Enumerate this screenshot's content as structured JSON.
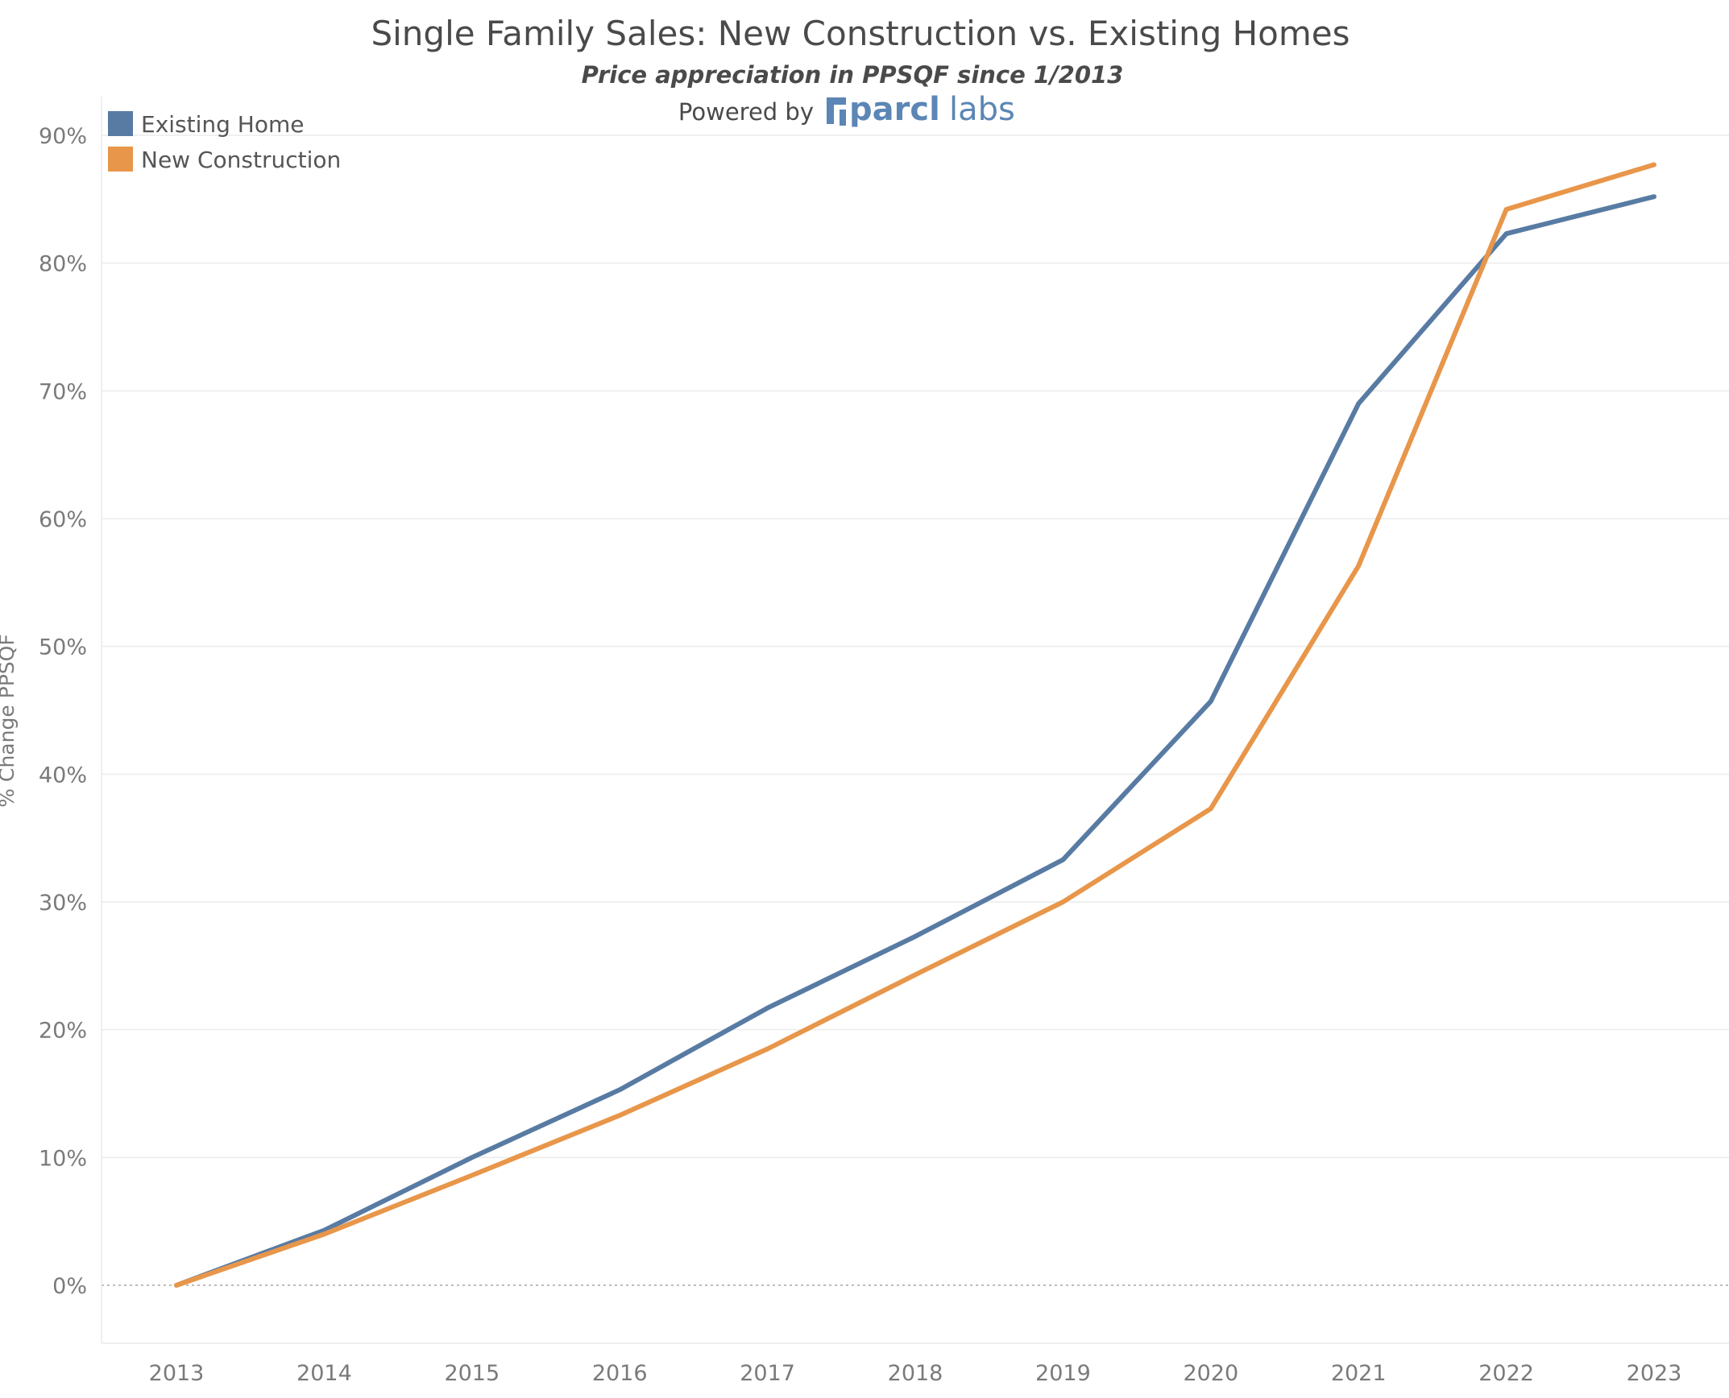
{
  "header": {
    "title": "Single Family Sales: New Construction vs. Existing Homes",
    "subtitle": "Price appreciation in PPSQF since 1/2013",
    "powered_by": "Powered by",
    "brand_name": "parcl",
    "brand_suffix": "labs"
  },
  "colors": {
    "existing": "#587BA3",
    "new_construction": "#E8964A",
    "brand": "#5B86B5",
    "grid": "#ececec"
  },
  "chart_data": {
    "type": "line",
    "title": "Single Family Sales: New Construction vs. Existing Homes",
    "subtitle": "Price appreciation in PPSQF since 1/2013",
    "xlabel": "",
    "ylabel": "% Change PPSQF",
    "x": [
      "2013",
      "2014",
      "2015",
      "2016",
      "2017",
      "2018",
      "2019",
      "2020",
      "2021",
      "2022",
      "2023"
    ],
    "ylim": [
      -4.5,
      90
    ],
    "yticks": [
      0,
      10,
      20,
      30,
      40,
      50,
      60,
      70,
      80,
      90
    ],
    "ytick_labels": [
      "0%",
      "10%",
      "20%",
      "30%",
      "40%",
      "50%",
      "60%",
      "70%",
      "80%",
      "90%"
    ],
    "grid": true,
    "legend_position": "top-left",
    "series": [
      {
        "name": "Existing Home",
        "color": "#587BA3",
        "values": [
          0,
          4.3,
          10.0,
          15.3,
          21.7,
          27.3,
          33.3,
          45.7,
          69.0,
          82.3,
          85.2
        ]
      },
      {
        "name": "New Construction",
        "color": "#E8964A",
        "values": [
          0,
          4.0,
          8.6,
          13.3,
          18.5,
          24.3,
          30.0,
          37.3,
          56.3,
          84.2,
          87.7
        ]
      }
    ]
  }
}
